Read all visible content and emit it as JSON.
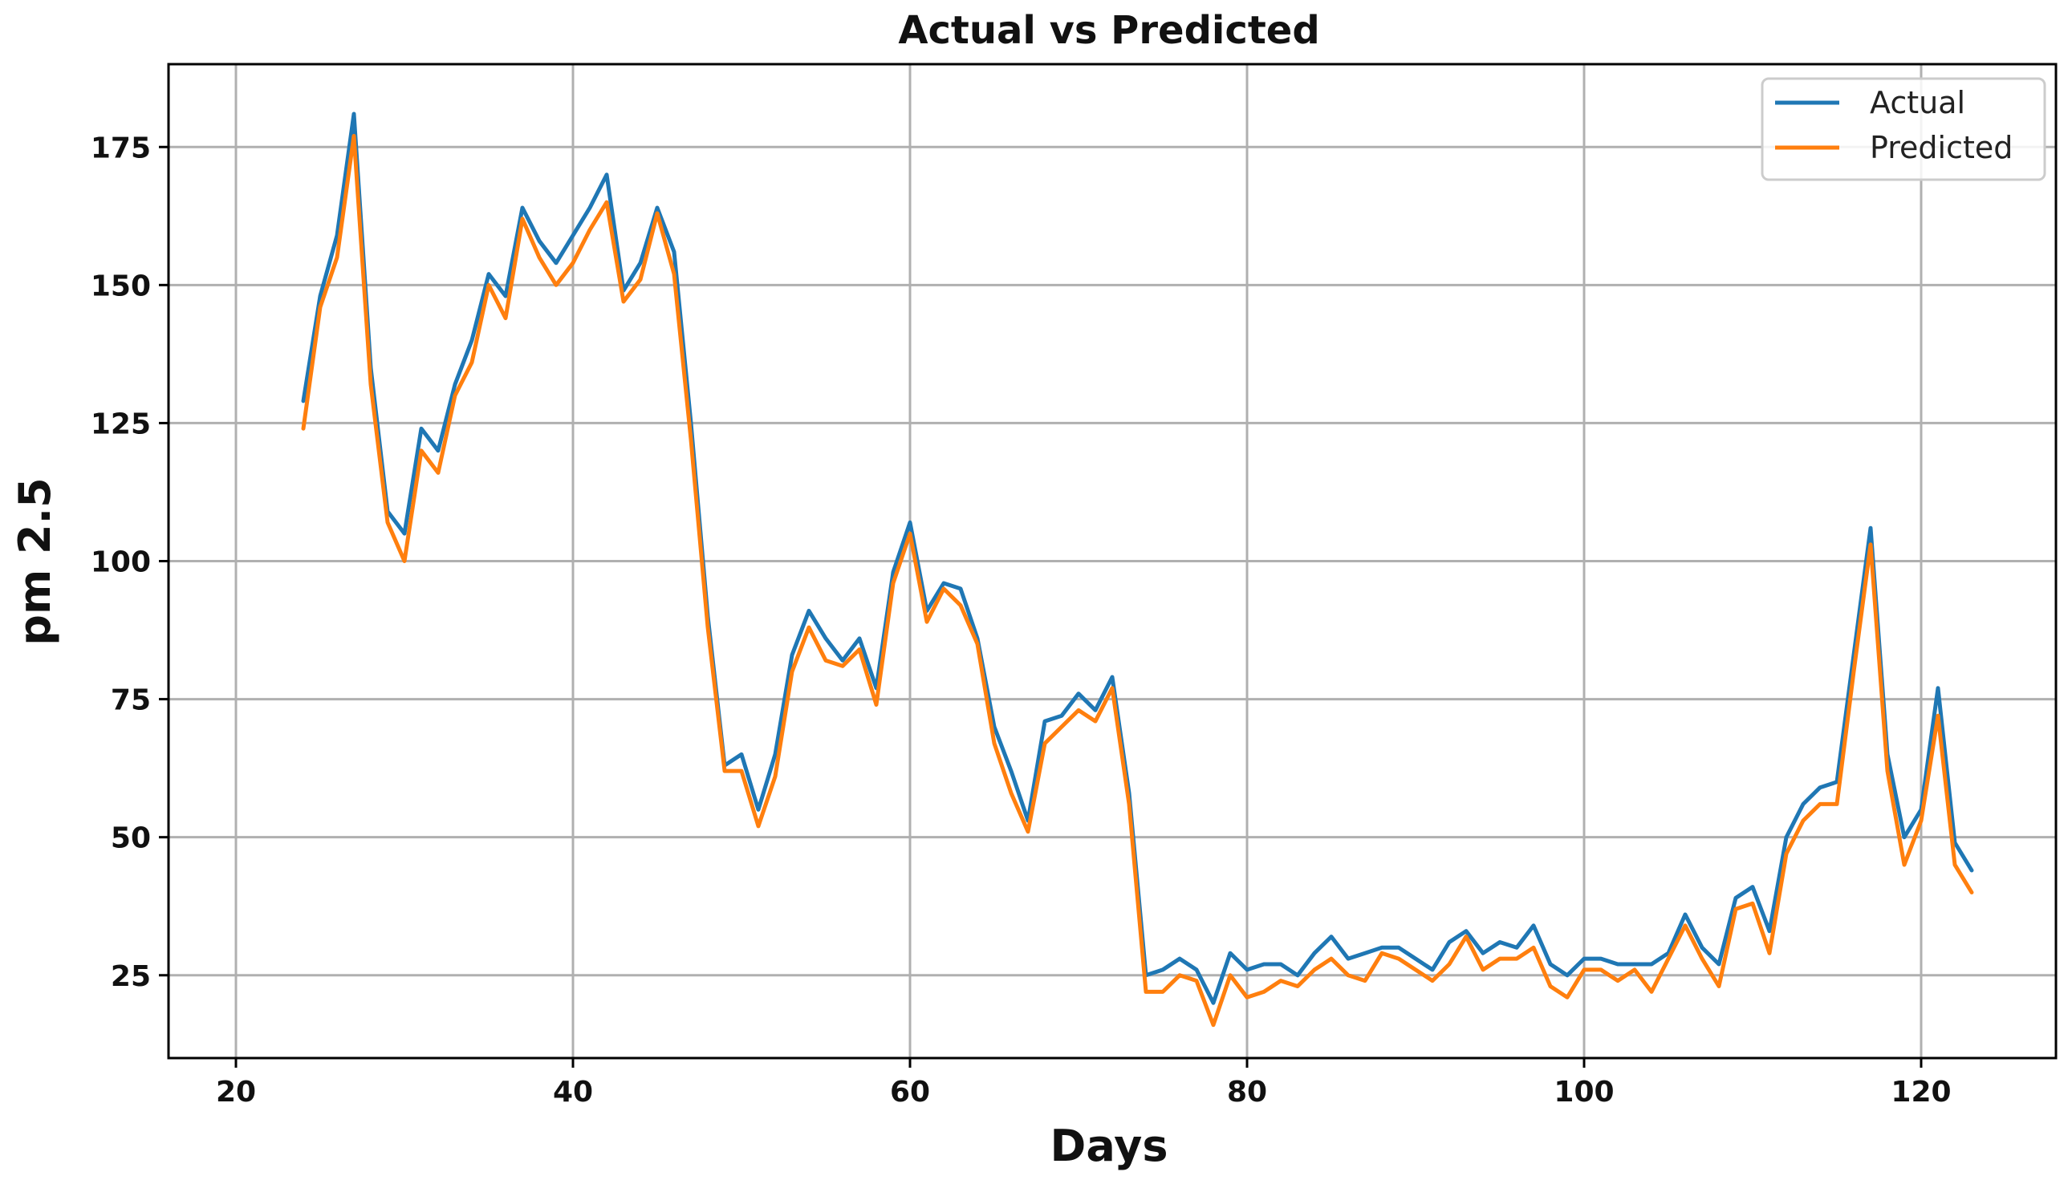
{
  "chart_data": {
    "type": "line",
    "title": "Actual vs Predicted",
    "xlabel": "Days",
    "ylabel": "pm 2.5",
    "xlim": [
      16,
      128
    ],
    "ylim": [
      10,
      190
    ],
    "xticks": [
      20,
      40,
      60,
      80,
      100,
      120
    ],
    "yticks": [
      25,
      50,
      75,
      100,
      125,
      150,
      175
    ],
    "grid": true,
    "legend_position": "top-right",
    "x_start": 24,
    "series": [
      {
        "name": "Actual",
        "color": "#1f77b4",
        "values": [
          129,
          148,
          159,
          181,
          135,
          109,
          105,
          124,
          120,
          132,
          140,
          152,
          148,
          164,
          158,
          154,
          159,
          164,
          170,
          149,
          154,
          164,
          156,
          125,
          90,
          63,
          65,
          55,
          65,
          83,
          91,
          86,
          82,
          86,
          77,
          98,
          107,
          91,
          96,
          95,
          86,
          70,
          62,
          53,
          71,
          72,
          76,
          73,
          79,
          58,
          25,
          26,
          28,
          26,
          20,
          29,
          26,
          27,
          27,
          25,
          29,
          32,
          28,
          29,
          30,
          30,
          28,
          26,
          31,
          33,
          29,
          31,
          30,
          34,
          27,
          25,
          28,
          28,
          27,
          27,
          27,
          29,
          36,
          30,
          27,
          39,
          41,
          33,
          50,
          56,
          59,
          60,
          83,
          106,
          65,
          50,
          55,
          77,
          49,
          44
        ]
      },
      {
        "name": "Predicted",
        "color": "#ff7f0e",
        "values": [
          124,
          146,
          155,
          177,
          132,
          107,
          100,
          120,
          116,
          130,
          136,
          150,
          144,
          162,
          155,
          150,
          154,
          160,
          165,
          147,
          151,
          163,
          152,
          122,
          88,
          62,
          62,
          52,
          61,
          80,
          88,
          82,
          81,
          84,
          74,
          96,
          105,
          89,
          95,
          92,
          85,
          67,
          58,
          51,
          67,
          70,
          73,
          71,
          77,
          56,
          22,
          22,
          25,
          24,
          16,
          25,
          21,
          22,
          24,
          23,
          26,
          28,
          25,
          24,
          29,
          28,
          26,
          24,
          27,
          32,
          26,
          28,
          28,
          30,
          23,
          21,
          26,
          26,
          24,
          26,
          22,
          28,
          34,
          28,
          23,
          37,
          38,
          29,
          47,
          53,
          56,
          56,
          80,
          103,
          62,
          45,
          53,
          72,
          45,
          40
        ]
      }
    ]
  }
}
